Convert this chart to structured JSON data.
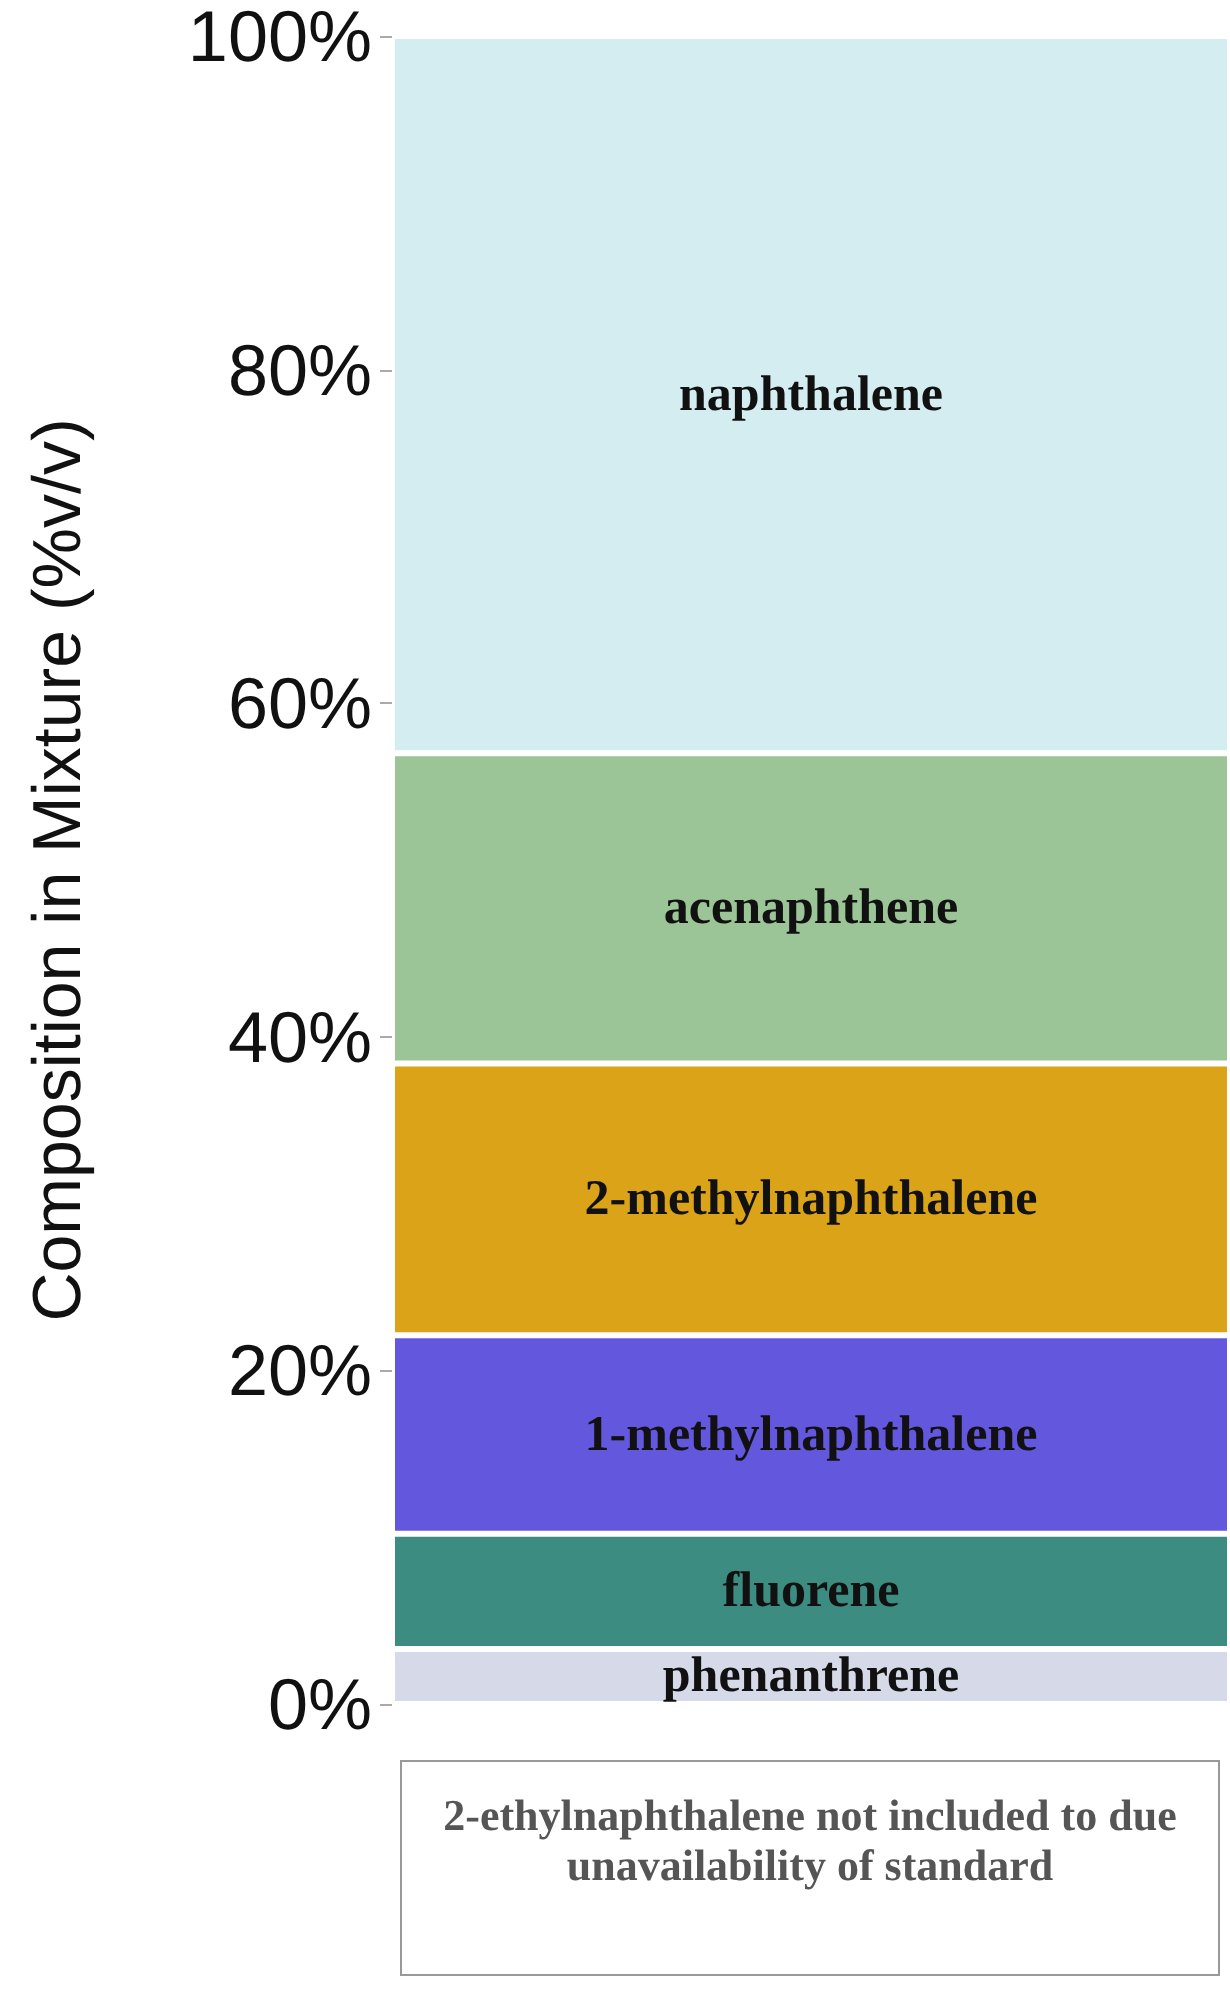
{
  "chart_data": {
    "type": "bar",
    "stacked": true,
    "ylabel": "Composition in Mixture (%v/v)",
    "categories": [
      null
    ],
    "series": [
      {
        "name": "phenanthrene",
        "color": "#d5d9e8",
        "values": [
          3.3
        ]
      },
      {
        "name": "fluorene",
        "color": "#3d8c82",
        "values": [
          6.9
        ]
      },
      {
        "name": "1-methylnaphthalene",
        "color": "#6358dd",
        "values": [
          11.9
        ]
      },
      {
        "name": "2-methylnaphthalene",
        "color": "#dba318",
        "values": [
          16.3
        ]
      },
      {
        "name": "acenaphthene",
        "color": "#9bc497",
        "values": [
          18.6
        ]
      },
      {
        "name": "naphthalene",
        "color": "#d4edf1",
        "values": [
          43.0
        ]
      }
    ],
    "ylim": [
      0,
      100
    ],
    "yticks": [
      {
        "value": 0,
        "label": "0%"
      },
      {
        "value": 20,
        "label": "20%"
      },
      {
        "value": 40,
        "label": "40%"
      },
      {
        "value": 60,
        "label": "60%"
      },
      {
        "value": 80,
        "label": "80%"
      },
      {
        "value": 100,
        "label": "100%"
      }
    ],
    "grid": false,
    "legend": false,
    "annotations": [
      "2-ethylnaphthalene not included to due unavailability of standard"
    ]
  }
}
